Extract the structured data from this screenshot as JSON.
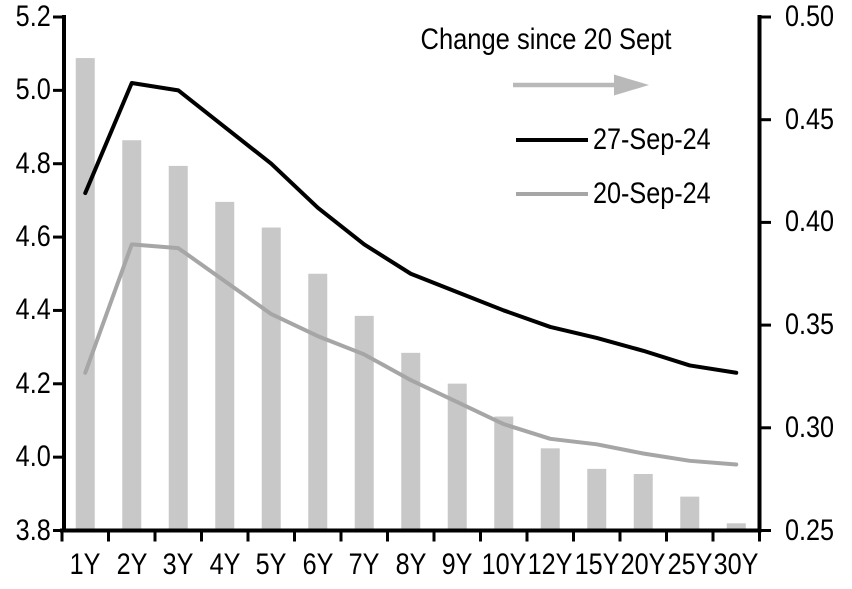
{
  "chart_data": {
    "type": "bar+line combo",
    "title": "",
    "categories": [
      "1Y",
      "2Y",
      "3Y",
      "4Y",
      "5Y",
      "6Y",
      "7Y",
      "8Y",
      "9Y",
      "10Y",
      "12Y",
      "15Y",
      "20Y",
      "25Y",
      "30Y"
    ],
    "series": [
      {
        "name": "Change since 20 Sept",
        "type": "bar",
        "axis": "right",
        "color": "#c8c8c8",
        "values": [
          0.48,
          0.44,
          0.4275,
          0.41,
          0.3975,
          0.375,
          0.3545,
          0.3365,
          0.3215,
          0.3055,
          0.29,
          0.28,
          0.2775,
          0.2665,
          0.2535
        ]
      },
      {
        "name": "27-Sep-24",
        "type": "line",
        "axis": "left",
        "color": "#000000",
        "values": [
          4.72,
          5.02,
          5.0,
          4.9,
          4.8,
          4.68,
          4.58,
          4.5,
          4.45,
          4.4,
          4.355,
          4.325,
          4.29,
          4.25,
          4.23
        ]
      },
      {
        "name": "20-Sep-24",
        "type": "line",
        "axis": "left",
        "color": "#a6a6a6",
        "values": [
          4.23,
          4.58,
          4.57,
          4.48,
          4.39,
          4.33,
          4.28,
          4.21,
          4.15,
          4.09,
          4.05,
          4.035,
          4.01,
          3.99,
          3.98
        ]
      }
    ],
    "left_axis": {
      "min": 3.8,
      "max": 5.2,
      "ticks": [
        "5.2",
        "5.0",
        "4.8",
        "4.6",
        "4.4",
        "4.2",
        "4.0",
        "3.8"
      ]
    },
    "right_axis": {
      "min": 0.25,
      "max": 0.5,
      "ticks": [
        "0.50",
        "0.45",
        "0.40",
        "0.35",
        "0.30",
        "0.25"
      ]
    },
    "grid": "off",
    "legend_position": "top-inside",
    "legend": {
      "change_label": "Change since 20 Sept",
      "arrow_icon": "right-arrow",
      "arrow_color": "#b9b9b9",
      "series1_label": "27-Sep-24",
      "series2_label": "20-Sep-24"
    }
  }
}
